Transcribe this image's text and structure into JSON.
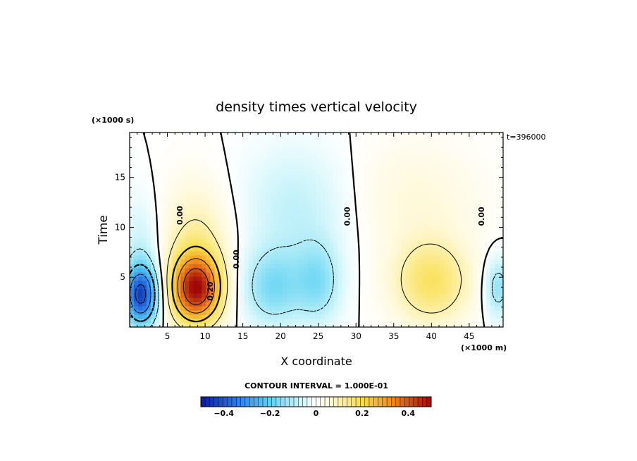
{
  "chart_data": {
    "type": "heatmap",
    "title": "density times vertical velocity",
    "xlabel": "X coordinate",
    "ylabel": "Time",
    "x_unit_label": "(×1000 m)",
    "y_unit_label": "(×1000 s)",
    "time_stamp": "t=396000",
    "xlim": [
      0,
      49.5
    ],
    "ylim": [
      0,
      19.5
    ],
    "x_ticks": [
      5,
      10,
      15,
      20,
      25,
      30,
      35,
      40,
      45
    ],
    "y_ticks": [
      5,
      10,
      15
    ],
    "contour_interval_label": "CONTOUR INTERVAL = 1.000E-01",
    "contour_levels": [
      -0.4,
      -0.3,
      -0.2,
      -0.1,
      0.0,
      0.1,
      0.2,
      0.3,
      0.4
    ],
    "contour_labels": [
      {
        "text": "0.00",
        "x": 7.0,
        "y": 11.2
      },
      {
        "text": "0.00",
        "x": 14.5,
        "y": 6.8
      },
      {
        "text": "0.20",
        "x": 11.0,
        "y": 3.6
      },
      {
        "text": "0.00",
        "x": 29.2,
        "y": 11.1
      },
      {
        "text": "0.00",
        "x": 47.0,
        "y": 11.1
      }
    ],
    "features": [
      {
        "kind": "min",
        "x": 1.5,
        "y": 3.2,
        "value": -0.35
      },
      {
        "kind": "max",
        "x": 8.5,
        "y": 3.8,
        "value": 0.35
      },
      {
        "kind": "min",
        "x": 20.0,
        "y": 4.5,
        "value": -0.18
      },
      {
        "kind": "min",
        "x": 25.0,
        "y": 5.0,
        "value": -0.2
      },
      {
        "kind": "max",
        "x": 40.0,
        "y": 4.5,
        "value": 0.17
      },
      {
        "kind": "min",
        "x": 48.5,
        "y": 4.0,
        "value": -0.15
      }
    ],
    "colorbar": {
      "min": -0.5,
      "max": 0.5,
      "tick_values": [
        -0.4,
        -0.2,
        0,
        0.2,
        0.4
      ],
      "tick_labels": [
        "−0.4",
        "−0.2",
        "0",
        "0.2",
        "0.4"
      ],
      "stops": [
        {
          "v": -0.5,
          "color": "#0a1a9a"
        },
        {
          "v": -0.35,
          "color": "#2a78e8"
        },
        {
          "v": -0.2,
          "color": "#5fd2f2"
        },
        {
          "v": -0.06,
          "color": "#d2f6fb"
        },
        {
          "v": 0.0,
          "color": "#ffffff"
        },
        {
          "v": 0.06,
          "color": "#fff8d6"
        },
        {
          "v": 0.2,
          "color": "#f8de4a"
        },
        {
          "v": 0.33,
          "color": "#f08a1e"
        },
        {
          "v": 0.5,
          "color": "#a00808"
        }
      ]
    }
  }
}
